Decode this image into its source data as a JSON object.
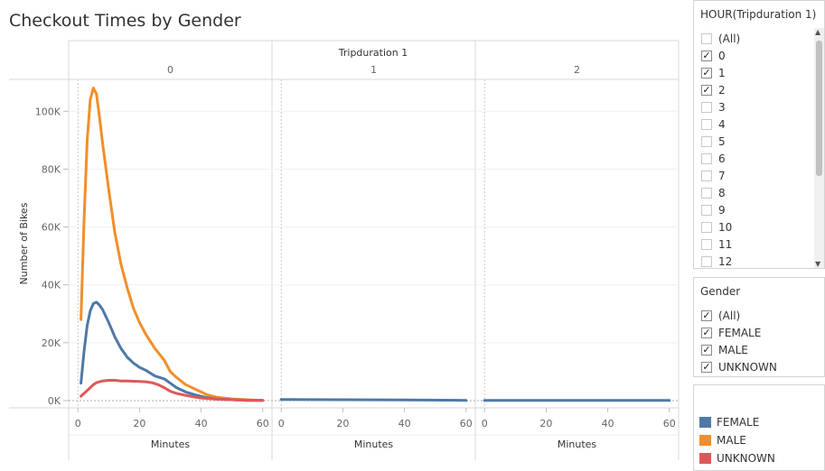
{
  "title": "Checkout Times by Gender",
  "hour_filter": {
    "title": "HOUR(Tripduration 1)",
    "items": [
      {
        "label": "(All)",
        "checked": false
      },
      {
        "label": "0",
        "checked": true
      },
      {
        "label": "1",
        "checked": true
      },
      {
        "label": "2",
        "checked": true
      },
      {
        "label": "3",
        "checked": false
      },
      {
        "label": "4",
        "checked": false
      },
      {
        "label": "5",
        "checked": false
      },
      {
        "label": "6",
        "checked": false
      },
      {
        "label": "7",
        "checked": false
      },
      {
        "label": "8",
        "checked": false
      },
      {
        "label": "9",
        "checked": false
      },
      {
        "label": "10",
        "checked": false
      },
      {
        "label": "11",
        "checked": false
      },
      {
        "label": "12",
        "checked": false
      }
    ]
  },
  "gender_filter": {
    "title": "Gender",
    "items": [
      {
        "label": "(All)",
        "checked": true
      },
      {
        "label": "FEMALE",
        "checked": true
      },
      {
        "label": "MALE",
        "checked": true
      },
      {
        "label": "UNKNOWN",
        "checked": true
      }
    ]
  },
  "legend": [
    {
      "label": "FEMALE",
      "color": "#4e79a7"
    },
    {
      "label": "MALE",
      "color": "#f28e2b"
    },
    {
      "label": "UNKNOWN",
      "color": "#e15759"
    }
  ],
  "chart_data": {
    "type": "line",
    "column_header": "Tripduration 1",
    "ylabel": "Number of Bikes",
    "xlabel": "Minutes",
    "ylim": [
      -2500,
      111000
    ],
    "yticks": [
      0,
      20000,
      40000,
      60000,
      80000,
      100000
    ],
    "ytick_labels": [
      "0K",
      "20K",
      "40K",
      "60K",
      "80K",
      "100K"
    ],
    "xlim": [
      -3,
      63
    ],
    "xticks": [
      0,
      20,
      40,
      60
    ],
    "panels": [
      {
        "label": "0",
        "series": [
          {
            "name": "MALE",
            "color": "#f28e2b",
            "x": [
              1,
              2,
              3,
              4,
              5,
              6,
              7,
              8,
              10,
              12,
              14,
              16,
              18,
              20,
              22,
              25,
              28,
              30,
              32,
              35,
              38,
              40,
              42,
              45,
              48,
              50,
              55,
              60
            ],
            "y": [
              28000,
              62000,
              90000,
              104000,
              108000,
              106000,
              98000,
              89000,
              73000,
              58000,
              47000,
              39000,
              32000,
              27000,
              23000,
              18000,
              14000,
              10000,
              8000,
              5500,
              4000,
              3000,
              2000,
              1200,
              800,
              600,
              300,
              100
            ]
          },
          {
            "name": "FEMALE",
            "color": "#4e79a7",
            "x": [
              1,
              2,
              3,
              4,
              5,
              6,
              7,
              8,
              10,
              12,
              14,
              16,
              18,
              20,
              22,
              25,
              28,
              30,
              32,
              35,
              38,
              40,
              42,
              45,
              48,
              50,
              55,
              60
            ],
            "y": [
              6000,
              17000,
              26000,
              31000,
              33500,
              34000,
              33000,
              31500,
              27000,
              22000,
              18000,
              15000,
              13000,
              11500,
              10500,
              8500,
              7500,
              6000,
              4500,
              3000,
              2000,
              1500,
              1000,
              600,
              400,
              300,
              100,
              50
            ]
          },
          {
            "name": "UNKNOWN",
            "color": "#e15759",
            "x": [
              1,
              2,
              3,
              4,
              5,
              6,
              8,
              10,
              12,
              14,
              16,
              18,
              20,
              22,
              24,
              26,
              28,
              30,
              32,
              35,
              38,
              40,
              45,
              50,
              55,
              60
            ],
            "y": [
              1500,
              2500,
              3500,
              4500,
              5500,
              6200,
              6800,
              7000,
              7000,
              6800,
              6800,
              6700,
              6600,
              6500,
              6200,
              5500,
              4500,
              3200,
              2500,
              1800,
              1200,
              900,
              500,
              300,
              100,
              50
            ]
          }
        ]
      },
      {
        "label": "1",
        "series": [
          {
            "name": "FEMALE",
            "color": "#4e79a7",
            "x": [
              0,
              20,
              40,
              60
            ],
            "y": [
              400,
              300,
              200,
              100
            ]
          }
        ]
      },
      {
        "label": "2",
        "series": [
          {
            "name": "FEMALE",
            "color": "#4e79a7",
            "x": [
              0,
              20,
              40,
              60
            ],
            "y": [
              50,
              50,
              50,
              50
            ]
          }
        ]
      }
    ]
  }
}
